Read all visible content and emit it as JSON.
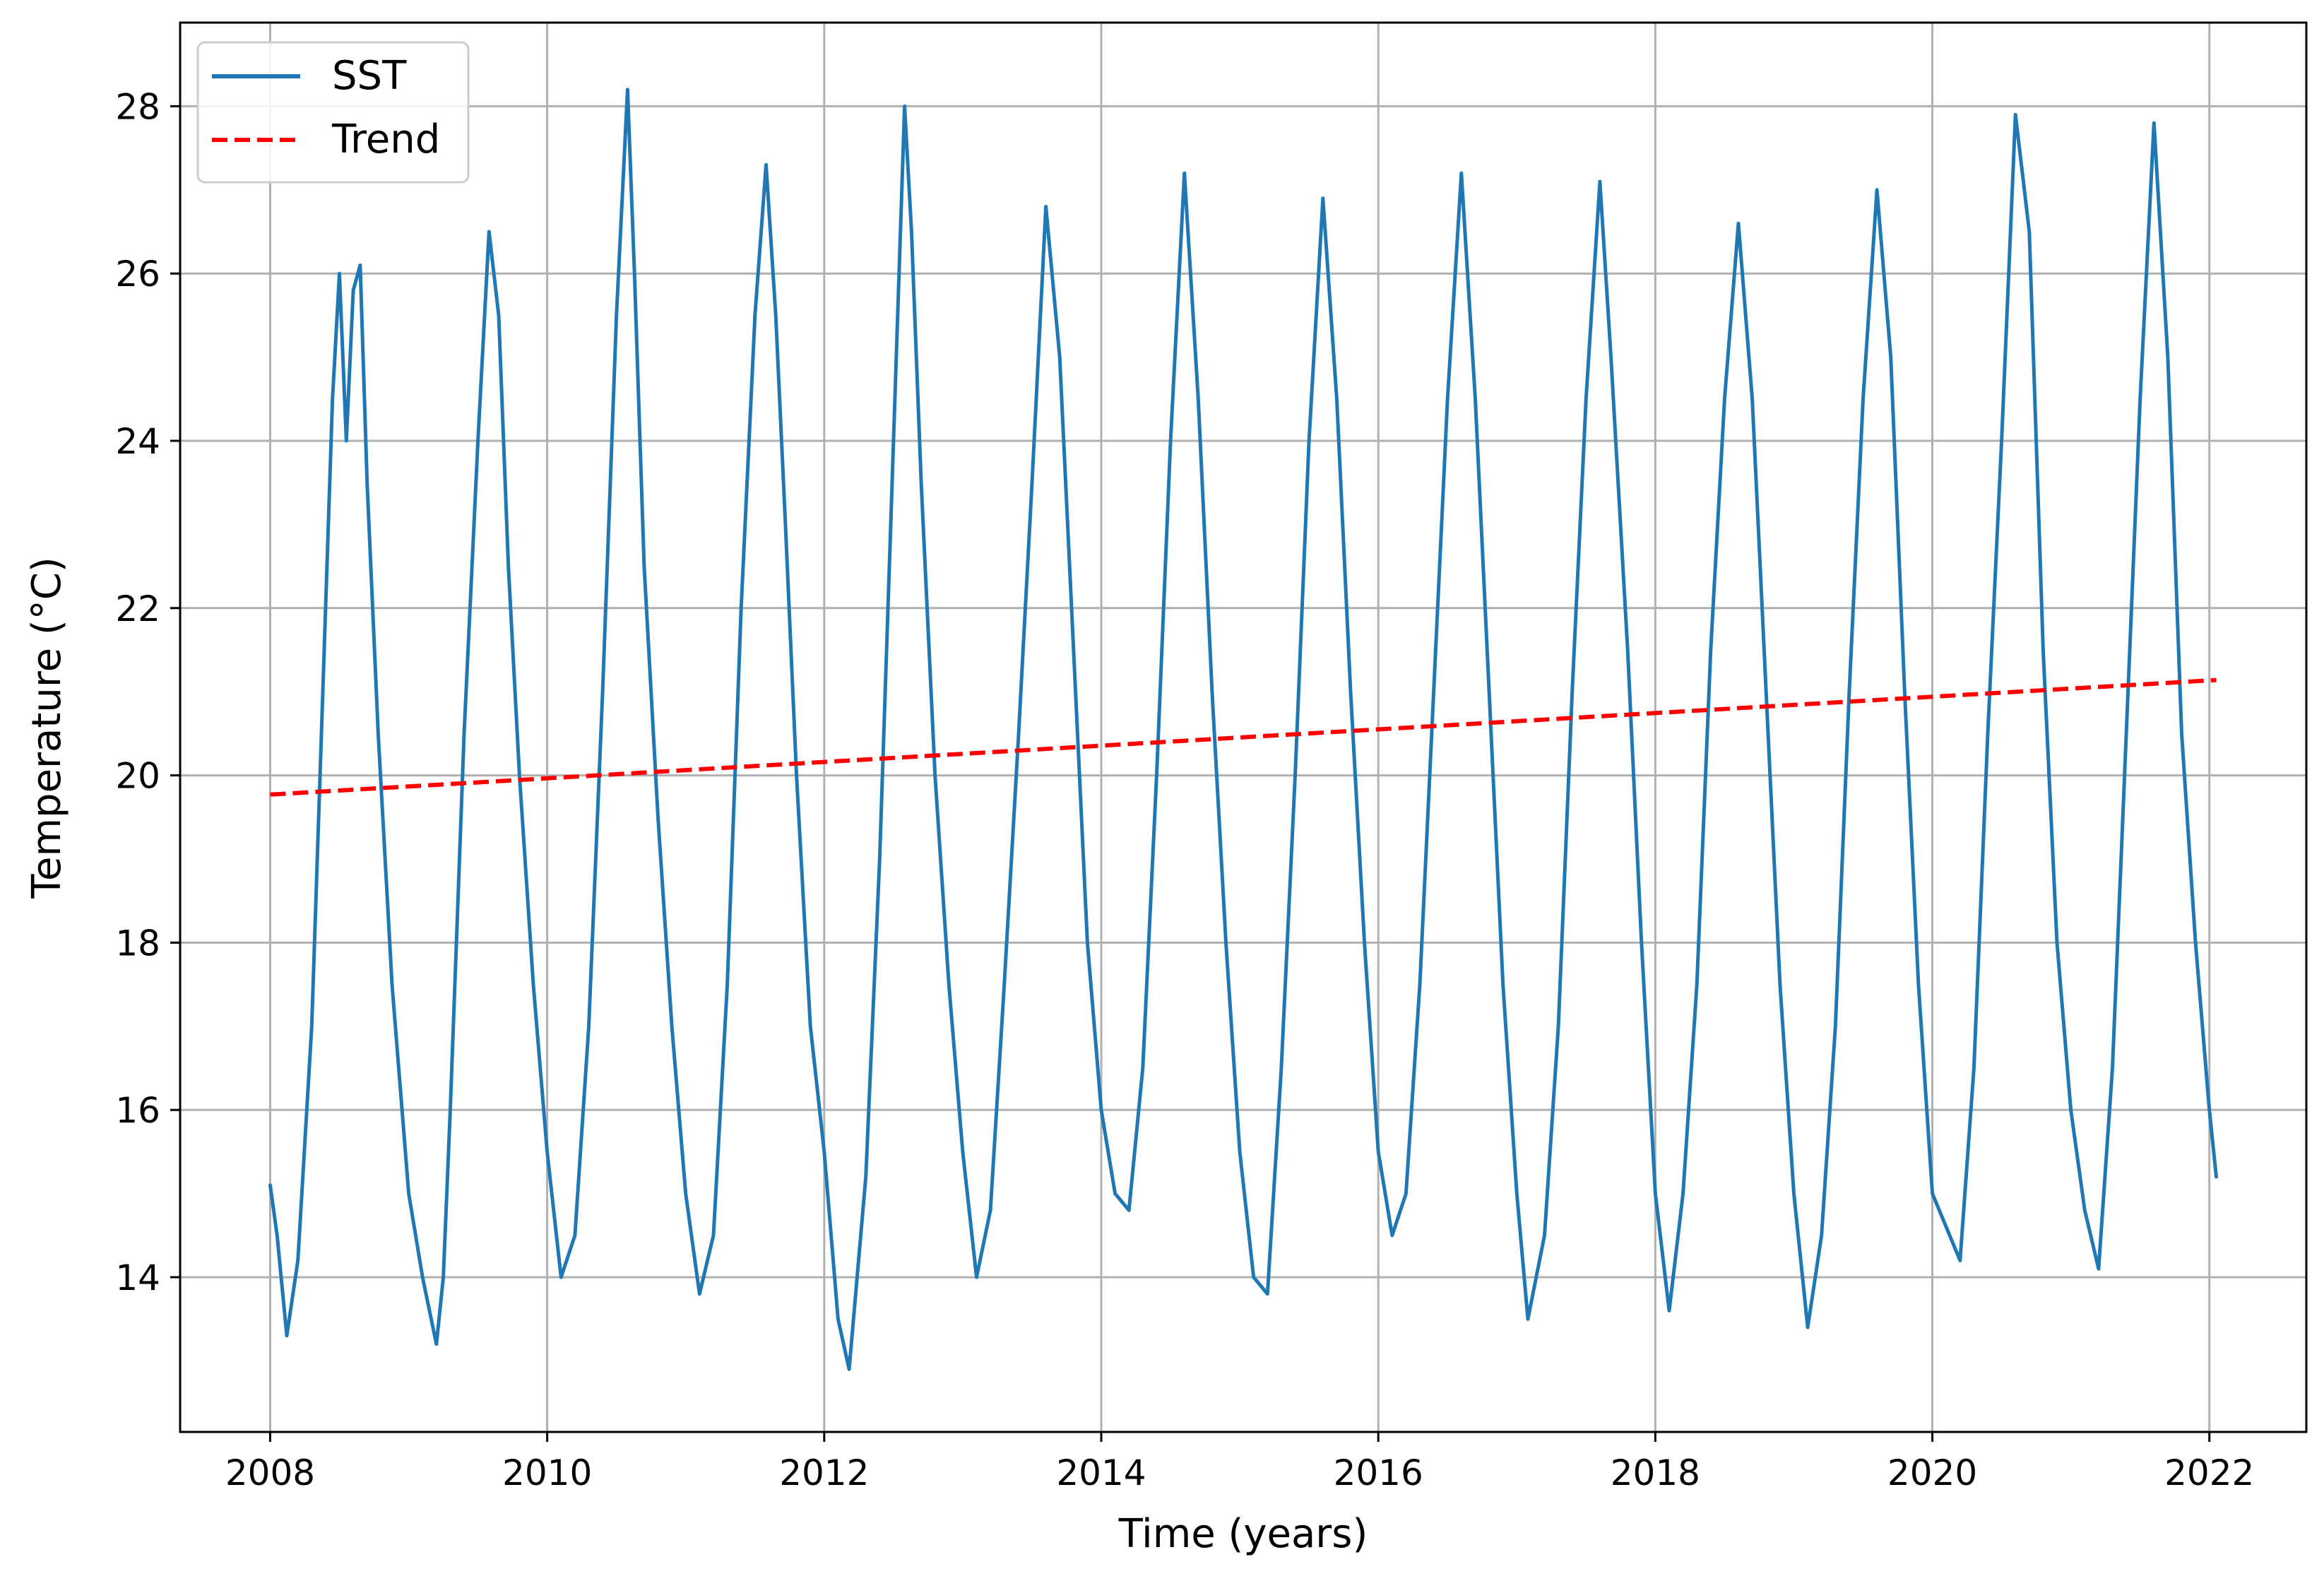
{
  "chart_data": {
    "type": "line",
    "title": "",
    "xlabel": "Time (years)",
    "ylabel": "Temperature (°C)",
    "xlim": [
      2007.35,
      2022.7
    ],
    "ylim": [
      12.15,
      29.0
    ],
    "x_ticks": [
      2008,
      2010,
      2012,
      2014,
      2016,
      2018,
      2020,
      2022
    ],
    "y_ticks": [
      14,
      16,
      18,
      20,
      22,
      24,
      26,
      28
    ],
    "grid": true,
    "legend": {
      "placement": "top-left",
      "entries": [
        "SST",
        "Trend"
      ]
    },
    "colors": {
      "sst": "#1f77b4",
      "trend": "#ff0000",
      "grid": "#b0b0b0"
    },
    "series": [
      {
        "name": "SST",
        "style": "solid",
        "x": [
          2008.0,
          2008.05,
          2008.12,
          2008.2,
          2008.3,
          2008.38,
          2008.45,
          2008.5,
          2008.55,
          2008.6,
          2008.65,
          2008.7,
          2008.78,
          2008.88,
          2009.0,
          2009.1,
          2009.2,
          2009.25,
          2009.3,
          2009.4,
          2009.5,
          2009.58,
          2009.65,
          2009.72,
          2009.8,
          2009.9,
          2010.0,
          2010.1,
          2010.2,
          2010.3,
          2010.4,
          2010.5,
          2010.58,
          2010.63,
          2010.7,
          2010.8,
          2010.9,
          2011.0,
          2011.1,
          2011.2,
          2011.3,
          2011.4,
          2011.5,
          2011.58,
          2011.65,
          2011.72,
          2011.8,
          2011.9,
          2012.0,
          2012.1,
          2012.18,
          2012.3,
          2012.4,
          2012.5,
          2012.58,
          2012.63,
          2012.7,
          2012.8,
          2012.9,
          2013.0,
          2013.1,
          2013.2,
          2013.3,
          2013.4,
          2013.5,
          2013.6,
          2013.7,
          2013.8,
          2013.9,
          2014.0,
          2014.1,
          2014.2,
          2014.3,
          2014.4,
          2014.5,
          2014.6,
          2014.7,
          2014.8,
          2014.9,
          2015.0,
          2015.1,
          2015.2,
          2015.3,
          2015.4,
          2015.5,
          2015.6,
          2015.7,
          2015.8,
          2015.9,
          2016.0,
          2016.1,
          2016.2,
          2016.3,
          2016.4,
          2016.5,
          2016.6,
          2016.7,
          2016.8,
          2016.9,
          2017.0,
          2017.08,
          2017.2,
          2017.3,
          2017.4,
          2017.5,
          2017.6,
          2017.68,
          2017.8,
          2017.9,
          2018.0,
          2018.1,
          2018.2,
          2018.3,
          2018.4,
          2018.5,
          2018.6,
          2018.7,
          2018.8,
          2018.9,
          2019.0,
          2019.1,
          2019.2,
          2019.3,
          2019.4,
          2019.5,
          2019.6,
          2019.7,
          2019.8,
          2019.9,
          2020.0,
          2020.1,
          2020.2,
          2020.3,
          2020.4,
          2020.5,
          2020.6,
          2020.7,
          2020.8,
          2020.9,
          2021.0,
          2021.1,
          2021.2,
          2021.3,
          2021.4,
          2021.5,
          2021.6,
          2021.7,
          2021.8,
          2021.9,
          2022.0,
          2022.05
        ],
        "y": [
          15.1,
          14.5,
          13.3,
          14.2,
          17.0,
          21.0,
          24.5,
          26.0,
          24.0,
          25.8,
          26.1,
          23.5,
          20.5,
          17.5,
          15.0,
          14.0,
          13.2,
          14.0,
          16.0,
          20.5,
          24.0,
          26.5,
          25.5,
          22.5,
          20.0,
          17.5,
          15.5,
          14.0,
          14.5,
          17.0,
          21.0,
          25.5,
          28.2,
          26.0,
          22.5,
          19.5,
          17.0,
          15.0,
          13.8,
          14.5,
          17.5,
          22.0,
          25.5,
          27.3,
          25.5,
          23.0,
          20.0,
          17.0,
          15.5,
          13.5,
          12.9,
          15.2,
          19.0,
          24.0,
          28.0,
          26.5,
          23.5,
          20.0,
          17.5,
          15.5,
          14.0,
          14.8,
          17.5,
          20.4,
          23.5,
          26.8,
          25.0,
          21.5,
          18.0,
          16.0,
          15.0,
          14.8,
          16.5,
          20.0,
          24.0,
          27.2,
          24.5,
          21.0,
          18.0,
          15.5,
          14.0,
          13.8,
          16.5,
          20.0,
          24.0,
          26.9,
          24.5,
          21.0,
          18.0,
          15.5,
          14.5,
          15.0,
          17.5,
          21.0,
          24.5,
          27.2,
          24.5,
          21.0,
          17.5,
          15.0,
          13.5,
          14.5,
          17.0,
          21.0,
          24.5,
          27.1,
          25.0,
          21.5,
          18.0,
          15.0,
          13.6,
          15.0,
          17.5,
          21.5,
          24.5,
          26.6,
          24.5,
          21.0,
          17.5,
          15.0,
          13.4,
          14.5,
          17.0,
          21.0,
          24.5,
          27.0,
          25.0,
          21.0,
          17.5,
          15.0,
          14.6,
          14.2,
          16.5,
          20.5,
          24.0,
          27.9,
          26.5,
          21.5,
          18.0,
          16.0,
          14.8,
          14.1,
          16.5,
          20.5,
          24.5,
          27.8,
          25.0,
          20.5,
          18.0,
          16.0,
          15.2
        ]
      },
      {
        "name": "Trend",
        "style": "dashed",
        "x": [
          2008.0,
          2022.05
        ],
        "y": [
          19.77,
          21.14
        ]
      }
    ]
  }
}
